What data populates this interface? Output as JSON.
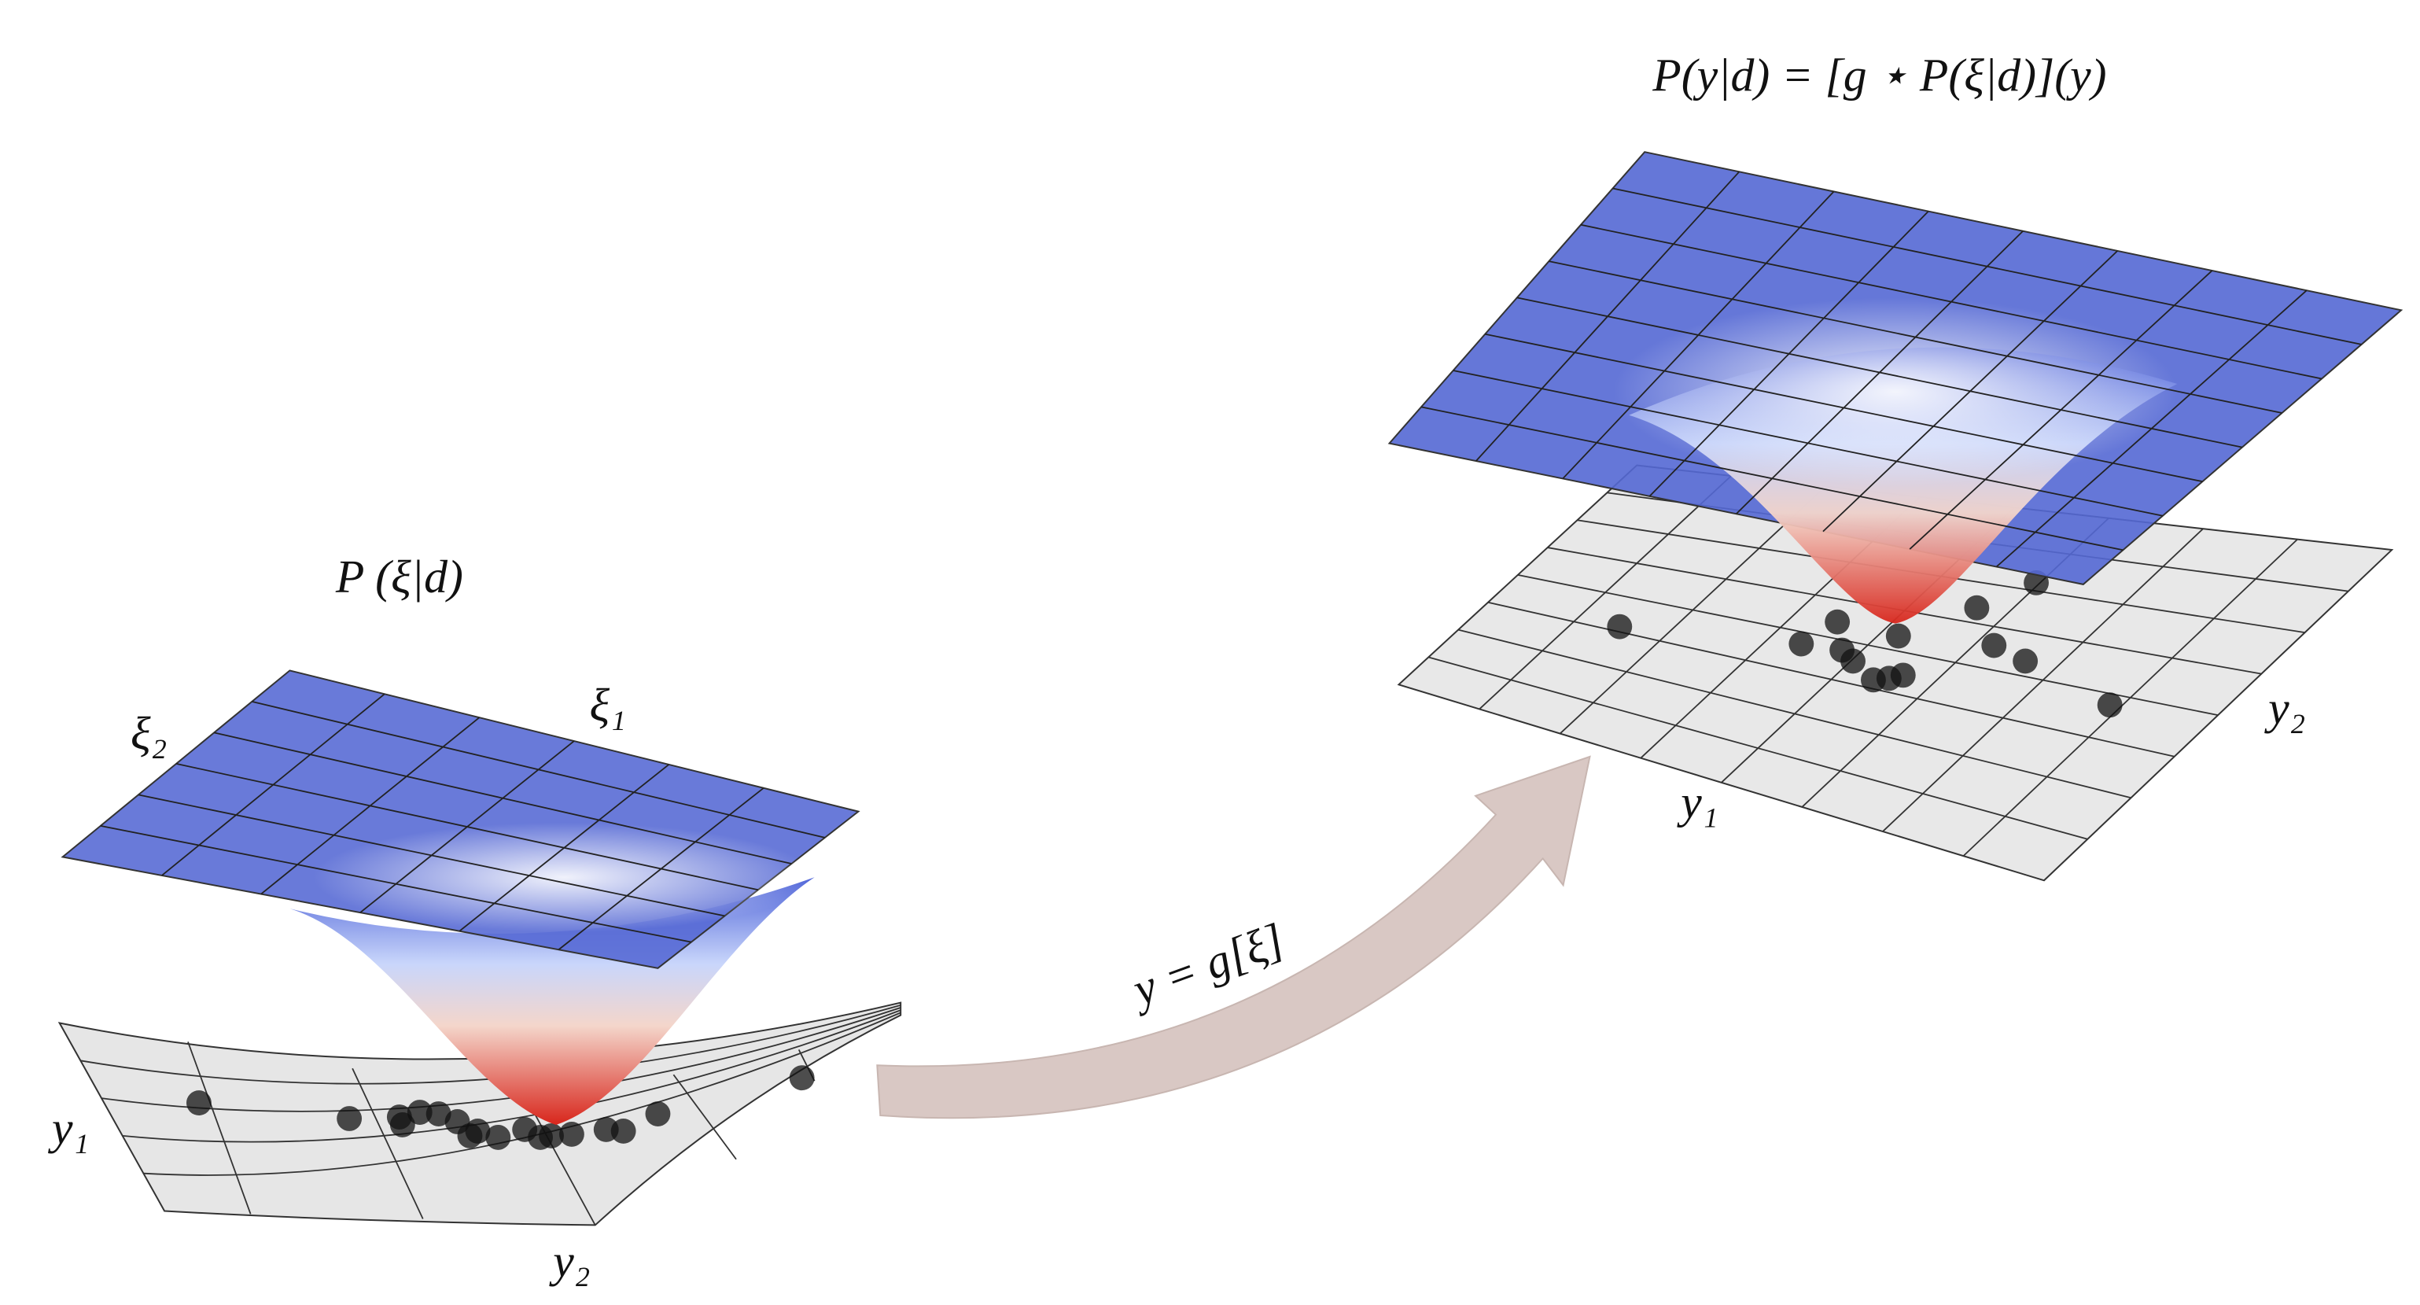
{
  "left": {
    "title": "P (ξ|d)",
    "xi_1": "ξ₁",
    "xi_2": "ξ₂",
    "y_1": "y₁",
    "y_2": "y₂"
  },
  "arrow": {
    "label": "y = g[ξ]"
  },
  "right": {
    "title": "P(y|d) = [g ⋆ P(ξ|d)](y)",
    "y_1": "y₁",
    "y_2": "y₂"
  }
}
